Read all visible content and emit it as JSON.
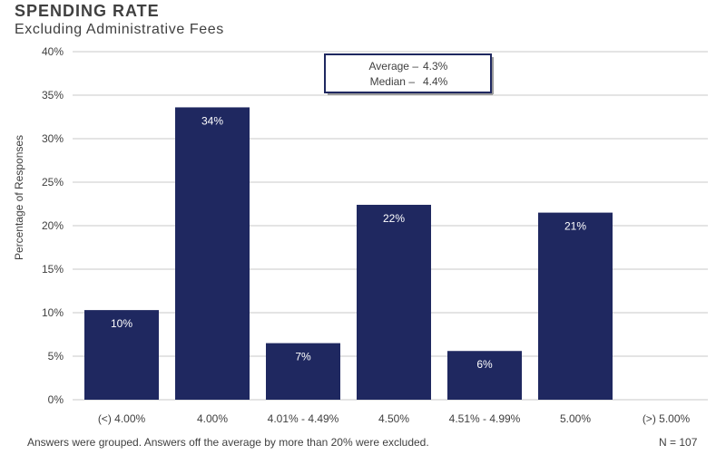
{
  "colors": {
    "bar": "#1f2860",
    "grid": "#c8c8c8",
    "text": "#404040",
    "bar_label": "#ffffff"
  },
  "stats_box": {
    "average_label": "Average –",
    "average_value": "4.3%",
    "median_label": "Median –",
    "median_value": "4.4%"
  },
  "footnote": "Answers were grouped. Answers off the average by more than 20% were excluded.",
  "n_label": "N = 107",
  "chart_data": {
    "type": "bar",
    "title": "SPENDING RATE",
    "subtitle": "Excluding Administrative Fees",
    "xlabel": "",
    "ylabel": "Percentage of Responses",
    "categories": [
      "(<) 4.00%",
      "4.00%",
      "4.01% - 4.49%",
      "4.50%",
      "4.51% - 4.99%",
      "5.00%",
      "(>) 5.00%"
    ],
    "values": [
      10.3,
      33.6,
      6.5,
      22.4,
      5.6,
      21.5,
      0
    ],
    "data_labels": [
      "10%",
      "34%",
      "7%",
      "22%",
      "6%",
      "21%",
      ""
    ],
    "ylim": [
      0,
      40
    ],
    "yticks": [
      0,
      5,
      10,
      15,
      20,
      25,
      30,
      35,
      40
    ],
    "ytick_labels": [
      "0%",
      "5%",
      "10%",
      "15%",
      "20%",
      "25%",
      "30%",
      "35%",
      "40%"
    ],
    "grid": true
  }
}
